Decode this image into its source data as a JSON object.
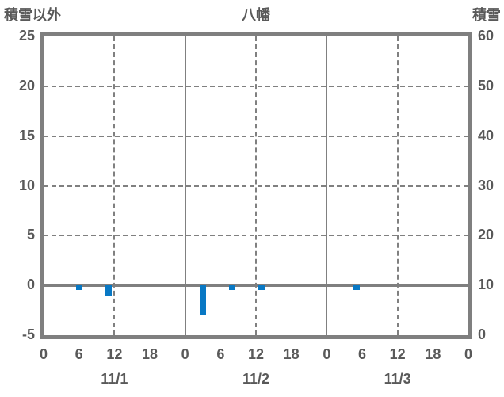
{
  "header": {
    "left_axis_title": "積雪以外",
    "chart_title": "八幡",
    "right_axis_title": "積雪"
  },
  "chart_data": {
    "type": "bar",
    "title": "八幡",
    "left_axis": {
      "label": "積雪以外",
      "min": -5,
      "max": 25,
      "tick_step": 5,
      "ticks": [
        "25",
        "20",
        "15",
        "10",
        "5",
        "0",
        "-5"
      ]
    },
    "right_axis": {
      "label": "積雪",
      "min": 0,
      "max": 60,
      "tick_step": 10,
      "ticks": [
        "60",
        "50",
        "40",
        "30",
        "20",
        "10",
        "0"
      ]
    },
    "x_axis": {
      "total_hours": 72,
      "hour_label_step": 6,
      "hour_labels": [
        "0",
        "6",
        "12",
        "18",
        "0",
        "6",
        "12",
        "18",
        "0",
        "6",
        "12",
        "18",
        "0"
      ],
      "day_labels": [
        "11/1",
        "11/2",
        "11/3"
      ]
    },
    "gridlines": {
      "horizontal_dashed_left_values": [
        20,
        15,
        10,
        5
      ],
      "zero_line_left_value": 0,
      "vertical_solid_hours": [
        24,
        48
      ],
      "vertical_dashed_hours": [
        12,
        36,
        60
      ]
    },
    "series": [
      {
        "name": "積雪以外",
        "color": "#0878c4",
        "bar_width_hours": 1,
        "points": [
          {
            "day": "11/1",
            "hour": 6,
            "value": -0.5
          },
          {
            "day": "11/1",
            "hour": 11,
            "value": -1.0
          },
          {
            "day": "11/2",
            "hour": 3,
            "value": -3.0
          },
          {
            "day": "11/2",
            "hour": 8,
            "value": -0.5
          },
          {
            "day": "11/2",
            "hour": 13,
            "value": -0.5
          },
          {
            "day": "11/3",
            "hour": 5,
            "value": -0.5
          }
        ]
      }
    ],
    "colors": {
      "grid": "#808080",
      "frame": "#7f7f7f",
      "text": "#595959",
      "bar": "#0878c4",
      "background": "#ffffff"
    }
  }
}
